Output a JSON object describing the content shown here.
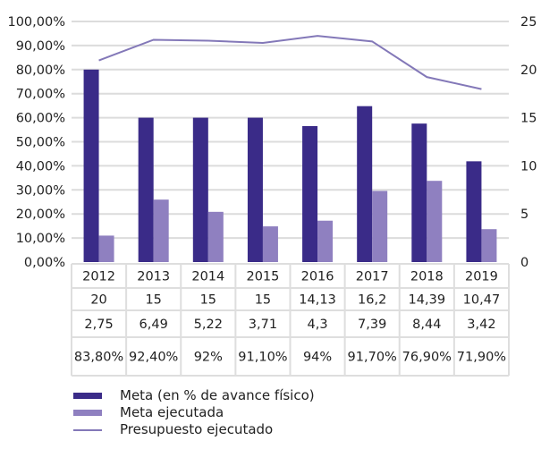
{
  "chart_data": {
    "type": "bar",
    "title": "",
    "xlabel": "",
    "ylabel": "",
    "categories": [
      "2012",
      "2013",
      "2014",
      "2015",
      "2016",
      "2017",
      "2018",
      "2019"
    ],
    "y_left": {
      "range": [
        0,
        100
      ],
      "ticks": [
        "0,00%",
        "10,00%",
        "20,00%",
        "30,00%",
        "40,00%",
        "50,00%",
        "60,00%",
        "70,00%",
        "80,00%",
        "90,00%",
        "100,00%"
      ]
    },
    "y_right": {
      "range": [
        0,
        25
      ],
      "ticks": [
        "0",
        "5",
        "10",
        "15",
        "20",
        "25"
      ]
    },
    "grid": true,
    "series": [
      {
        "name": "Meta (en % de avance físico)",
        "type": "bar",
        "axis": "right",
        "color": "#3a2b88",
        "values": [
          20,
          15,
          15,
          15,
          14.13,
          16.2,
          14.39,
          10.47
        ]
      },
      {
        "name": "Meta ejecutada",
        "type": "bar",
        "axis": "right",
        "color": "#8f80c0",
        "values": [
          2.75,
          6.49,
          5.22,
          3.71,
          4.3,
          7.39,
          8.44,
          3.42
        ]
      },
      {
        "name": "Presupuesto ejecutado",
        "type": "line",
        "axis": "left",
        "color": "#8378b8",
        "values": [
          83.8,
          92.4,
          92,
          91.1,
          94,
          91.7,
          76.9,
          71.9
        ]
      }
    ],
    "table": {
      "rows": [
        [
          "20",
          "15",
          "15",
          "15",
          "14,13",
          "16,2",
          "14,39",
          "10,47"
        ],
        [
          "2,75",
          "6,49",
          "5,22",
          "3,71",
          "4,3",
          "7,39",
          "8,44",
          "3,42"
        ],
        [
          "83,80%",
          "92,40%",
          "92%",
          "91,10%",
          "94%",
          "91,70%",
          "76,90%",
          "71,90%"
        ]
      ]
    },
    "legend": {
      "placement": "bottom-left",
      "entries": [
        {
          "label": "Meta (en % de avance físico)",
          "symbol": "bar",
          "color": "#3a2b88"
        },
        {
          "label": "Meta ejecutada",
          "symbol": "bar",
          "color": "#8f80c0"
        },
        {
          "label": "Presupuesto ejecutado",
          "symbol": "line",
          "color": "#8378b8"
        }
      ]
    }
  }
}
